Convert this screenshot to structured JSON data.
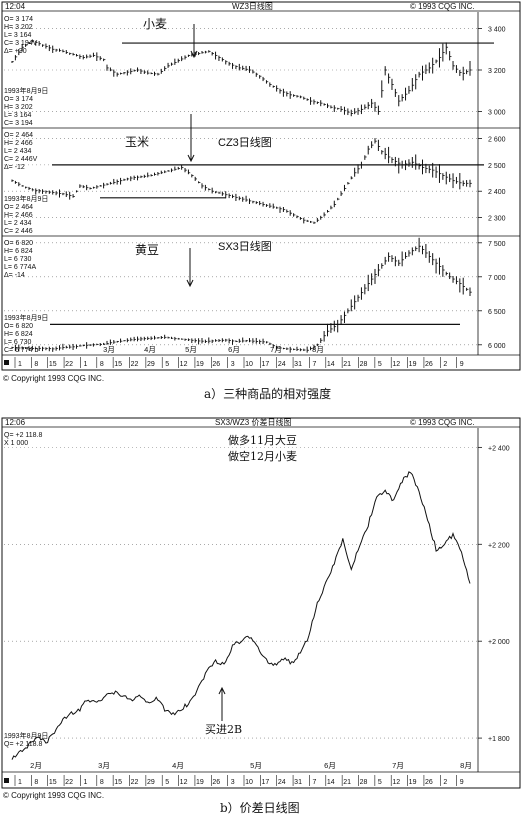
{
  "figure_a": {
    "header": {
      "time": "12:04",
      "title": "WZ3日线图",
      "copyright": "© 1993 CQG INC."
    },
    "caption": "a）三种商品的相对强度",
    "footer_copyright": "© Copyright 1993 CQG INC.",
    "x_day_labels": [
      "1",
      "8",
      "15",
      "22",
      "1",
      "8",
      "15",
      "22",
      "29",
      "5",
      "12",
      "19",
      "26",
      "3",
      "10",
      "17",
      "24",
      "31",
      "7",
      "14",
      "21",
      "28",
      "5",
      "12",
      "19",
      "26",
      "2",
      "9"
    ],
    "x_month_labels": [
      "3月",
      "4月",
      "5月",
      "6月",
      "7月",
      "8月"
    ]
  },
  "figure_b": {
    "header": {
      "time": "12:06",
      "title": "SX3/WZ3 价差日线图",
      "copyright": "© 1993 CQG INC."
    },
    "caption": "b）价差日线图",
    "footer_copyright": "© Copyright 1993 CQG INC.",
    "x_day_labels": [
      "1",
      "8",
      "15",
      "22",
      "1",
      "8",
      "15",
      "22",
      "29",
      "5",
      "12",
      "19",
      "26",
      "3",
      "10",
      "17",
      "24",
      "31",
      "7",
      "14",
      "21",
      "28",
      "5",
      "12",
      "19",
      "26",
      "2",
      "9"
    ],
    "x_month_labels": [
      "2月",
      "3月",
      "4月",
      "5月",
      "6月",
      "7月",
      "8月"
    ]
  },
  "chart_data": [
    {
      "type": "bar",
      "name_label": "小麦",
      "info_top": [
        "O= 3 174",
        "H= 3 202",
        "L= 3 164",
        "C= 3 194V",
        "Δ=   +30"
      ],
      "info_bottom": [
        "1993年8月9日",
        "O= 3 174",
        "H= 3 202",
        "L= 3 164",
        "C= 3 194"
      ],
      "y_ticks": [
        3000,
        3200,
        3400
      ],
      "y_tick_labels": [
        "3 000",
        "3 200",
        "3 400"
      ],
      "ylim": [
        2920,
        3480
      ],
      "resistance": 3330,
      "x_range": [
        0,
        27
      ],
      "close": [
        [
          0.0,
          3240
        ],
        [
          0.6,
          3310
        ],
        [
          1.2,
          3340
        ],
        [
          1.8,
          3320
        ],
        [
          2.4,
          3300
        ],
        [
          3.0,
          3290
        ],
        [
          3.6,
          3275
        ],
        [
          4.2,
          3260
        ],
        [
          4.8,
          3270
        ],
        [
          5.4,
          3250
        ],
        [
          5.6,
          3210
        ],
        [
          6.2,
          3180
        ],
        [
          6.8,
          3190
        ],
        [
          7.4,
          3200
        ],
        [
          8.0,
          3185
        ],
        [
          8.6,
          3180
        ],
        [
          9.2,
          3220
        ],
        [
          9.8,
          3245
        ],
        [
          10.4,
          3270
        ],
        [
          11.0,
          3280
        ],
        [
          11.6,
          3290
        ],
        [
          12.2,
          3260
        ],
        [
          12.8,
          3230
        ],
        [
          13.4,
          3210
        ],
        [
          14.0,
          3200
        ],
        [
          14.6,
          3170
        ],
        [
          15.2,
          3130
        ],
        [
          15.8,
          3100
        ],
        [
          16.4,
          3080
        ],
        [
          17.0,
          3070
        ],
        [
          17.6,
          3050
        ],
        [
          18.2,
          3040
        ],
        [
          18.8,
          3020
        ],
        [
          19.4,
          3010
        ],
        [
          20.0,
          2990
        ],
        [
          20.6,
          3010
        ],
        [
          21.2,
          3040
        ],
        [
          21.6,
          3000
        ],
        [
          22.0,
          3200
        ],
        [
          22.4,
          3130
        ],
        [
          22.8,
          3050
        ],
        [
          23.4,
          3100
        ],
        [
          24.0,
          3180
        ],
        [
          24.6,
          3210
        ],
        [
          25.2,
          3260
        ],
        [
          25.6,
          3310
        ],
        [
          26.0,
          3220
        ],
        [
          26.5,
          3180
        ],
        [
          27.0,
          3200
        ]
      ]
    },
    {
      "type": "bar",
      "name_label": "玉米",
      "title": "CZ3日线图",
      "info_top": [
        "O= 2 464",
        "H= 2 466",
        "L= 2 434",
        "C= 2 446V",
        "Δ=   -12"
      ],
      "info_bottom": [
        "1993年8月9日",
        "O= 2 464",
        "H= 2 466",
        "L= 2 434",
        "C= 2 446"
      ],
      "y_ticks": [
        2300,
        2400,
        2500,
        2600
      ],
      "y_tick_labels": [
        "2 300",
        "2 400",
        "2 500",
        "2 600"
      ],
      "ylim": [
        2230,
        2640
      ],
      "resistance": 2500,
      "support": 2375,
      "x_range": [
        0,
        27
      ],
      "close": [
        [
          0.0,
          2440
        ],
        [
          0.6,
          2420
        ],
        [
          1.2,
          2405
        ],
        [
          1.8,
          2400
        ],
        [
          2.4,
          2395
        ],
        [
          3.0,
          2390
        ],
        [
          3.6,
          2380
        ],
        [
          4.0,
          2420
        ],
        [
          4.6,
          2410
        ],
        [
          5.2,
          2420
        ],
        [
          5.8,
          2430
        ],
        [
          6.4,
          2440
        ],
        [
          7.0,
          2450
        ],
        [
          7.6,
          2455
        ],
        [
          8.2,
          2460
        ],
        [
          8.8,
          2470
        ],
        [
          9.4,
          2480
        ],
        [
          10.0,
          2490
        ],
        [
          10.6,
          2460
        ],
        [
          11.2,
          2420
        ],
        [
          11.8,
          2400
        ],
        [
          12.4,
          2390
        ],
        [
          13.0,
          2380
        ],
        [
          13.6,
          2370
        ],
        [
          14.2,
          2360
        ],
        [
          14.8,
          2350
        ],
        [
          15.4,
          2340
        ],
        [
          16.0,
          2330
        ],
        [
          16.6,
          2310
        ],
        [
          17.2,
          2290
        ],
        [
          17.8,
          2280
        ],
        [
          18.4,
          2310
        ],
        [
          19.0,
          2350
        ],
        [
          19.6,
          2410
        ],
        [
          20.2,
          2470
        ],
        [
          20.6,
          2500
        ],
        [
          21.0,
          2560
        ],
        [
          21.4,
          2590
        ],
        [
          21.8,
          2550
        ],
        [
          22.4,
          2520
        ],
        [
          23.0,
          2500
        ],
        [
          23.6,
          2510
        ],
        [
          24.2,
          2490
        ],
        [
          24.8,
          2480
        ],
        [
          25.4,
          2460
        ],
        [
          26.0,
          2440
        ],
        [
          26.5,
          2430
        ],
        [
          27.0,
          2430
        ]
      ]
    },
    {
      "type": "bar",
      "name_label": "黄豆",
      "title": "SX3日线图",
      "info_top": [
        "O= 6 820",
        "H= 6 824",
        "L= 6 730",
        "L= 6 774A",
        "Δ=   -14"
      ],
      "info_bottom": [
        "1993年8月9日",
        "O= 6 820",
        "H= 6 824",
        "L= 6 730",
        "C= 6 774 b"
      ],
      "y_ticks": [
        6000,
        6500,
        7000,
        7500
      ],
      "y_tick_labels": [
        "6 000",
        "6 500",
        "7 000",
        "7 500"
      ],
      "ylim": [
        5850,
        7600
      ],
      "resistance": 6300,
      "x_range": [
        0,
        27
      ],
      "close": [
        [
          0.0,
          5960
        ],
        [
          0.6,
          5950
        ],
        [
          1.2,
          5945
        ],
        [
          1.8,
          5950
        ],
        [
          2.4,
          5940
        ],
        [
          3.0,
          5960
        ],
        [
          3.6,
          5970
        ],
        [
          4.2,
          5990
        ],
        [
          4.8,
          6000
        ],
        [
          5.4,
          6010
        ],
        [
          6.0,
          6040
        ],
        [
          6.6,
          6060
        ],
        [
          7.2,
          6080
        ],
        [
          7.8,
          6090
        ],
        [
          8.4,
          6100
        ],
        [
          9.0,
          6110
        ],
        [
          9.6,
          6090
        ],
        [
          10.2,
          6080
        ],
        [
          10.8,
          6060
        ],
        [
          11.4,
          6050
        ],
        [
          12.0,
          6060
        ],
        [
          12.6,
          6070
        ],
        [
          13.2,
          6050
        ],
        [
          13.8,
          6060
        ],
        [
          14.4,
          6050
        ],
        [
          15.0,
          6040
        ],
        [
          15.6,
          5960
        ],
        [
          16.2,
          5940
        ],
        [
          16.8,
          5930
        ],
        [
          17.4,
          5920
        ],
        [
          18.0,
          6000
        ],
        [
          18.6,
          6200
        ],
        [
          19.2,
          6300
        ],
        [
          19.8,
          6500
        ],
        [
          20.4,
          6700
        ],
        [
          21.0,
          6900
        ],
        [
          21.6,
          7100
        ],
        [
          22.2,
          7300
        ],
        [
          22.8,
          7200
        ],
        [
          23.4,
          7350
        ],
        [
          24.0,
          7450
        ],
        [
          24.6,
          7300
        ],
        [
          25.2,
          7150
        ],
        [
          25.8,
          7000
        ],
        [
          26.4,
          6900
        ],
        [
          27.0,
          6774
        ]
      ]
    },
    {
      "type": "line",
      "title": "SX3/WZ3 价差日线图",
      "info_top": [
        "Q= +2 118.8",
        "X 1 000"
      ],
      "info_bottom": [
        "1993年8月9日",
        "Q= +2 118.8"
      ],
      "annotations": [
        "做多11月大豆",
        "做空12月小麦",
        "买进2B"
      ],
      "y_ticks": [
        1800,
        2000,
        2200,
        2400
      ],
      "y_tick_labels": [
        "1 800",
        "2 000",
        "2 200",
        "2 400"
      ],
      "ylim": [
        1730,
        2440
      ],
      "x_range": [
        0,
        27
      ],
      "values": [
        [
          0.0,
          1760
        ],
        [
          0.5,
          1770
        ],
        [
          1.0,
          1785
        ],
        [
          1.5,
          1800
        ],
        [
          2.0,
          1790
        ],
        [
          2.5,
          1810
        ],
        [
          3.0,
          1840
        ],
        [
          3.5,
          1850
        ],
        [
          4.0,
          1860
        ],
        [
          4.5,
          1880
        ],
        [
          5.0,
          1870
        ],
        [
          5.5,
          1890
        ],
        [
          6.0,
          1895
        ],
        [
          6.5,
          1890
        ],
        [
          7.0,
          1880
        ],
        [
          7.5,
          1885
        ],
        [
          8.0,
          1875
        ],
        [
          8.5,
          1880
        ],
        [
          9.0,
          1860
        ],
        [
          9.5,
          1850
        ],
        [
          10.0,
          1860
        ],
        [
          10.5,
          1875
        ],
        [
          11.0,
          1905
        ],
        [
          11.5,
          1940
        ],
        [
          12.0,
          1960
        ],
        [
          12.5,
          1950
        ],
        [
          13.0,
          1990
        ],
        [
          13.5,
          2000
        ],
        [
          14.0,
          2010
        ],
        [
          14.5,
          1985
        ],
        [
          15.0,
          1960
        ],
        [
          15.5,
          1950
        ],
        [
          16.0,
          1965
        ],
        [
          16.5,
          1955
        ],
        [
          17.0,
          1975
        ],
        [
          17.5,
          2010
        ],
        [
          18.0,
          2080
        ],
        [
          18.5,
          2120
        ],
        [
          19.0,
          2160
        ],
        [
          19.5,
          2210
        ],
        [
          20.0,
          2150
        ],
        [
          20.5,
          2200
        ],
        [
          21.0,
          2240
        ],
        [
          21.5,
          2300
        ],
        [
          22.0,
          2310
        ],
        [
          22.5,
          2290
        ],
        [
          23.0,
          2330
        ],
        [
          23.5,
          2350
        ],
        [
          24.0,
          2310
        ],
        [
          24.5,
          2250
        ],
        [
          25.0,
          2190
        ],
        [
          25.5,
          2200
        ],
        [
          26.0,
          2220
        ],
        [
          26.5,
          2180
        ],
        [
          27.0,
          2119
        ]
      ]
    }
  ]
}
